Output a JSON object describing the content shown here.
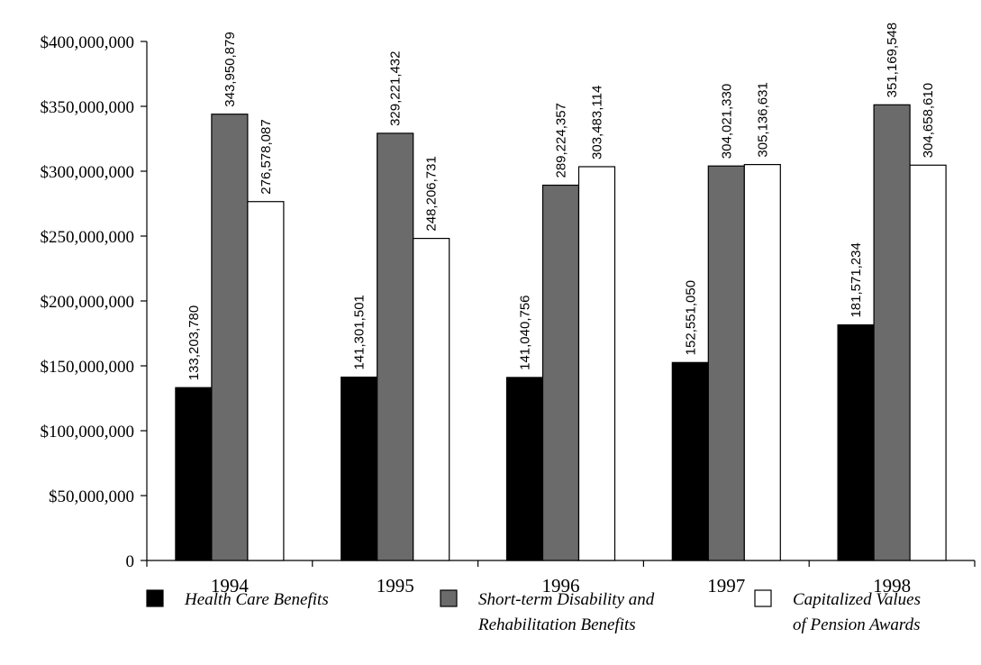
{
  "chart_data": {
    "type": "bar",
    "title": "",
    "xlabel": "",
    "ylabel": "",
    "categories": [
      "1994",
      "1995",
      "1996",
      "1997",
      "1998"
    ],
    "ylim": [
      0,
      400000000
    ],
    "yticks": [
      0,
      50000000,
      100000000,
      150000000,
      200000000,
      250000000,
      300000000,
      350000000,
      400000000
    ],
    "ytick_labels": [
      "0",
      "$50,000,000",
      "$100,000,000",
      "$150,000,000",
      "$200,000,000",
      "$250,000,000",
      "$300,000,000",
      "$350,000,000",
      "$400,000,000"
    ],
    "grid": false,
    "legend_position": "bottom",
    "series": [
      {
        "name_lines": [
          "Health Care Benefits"
        ],
        "color": "#000000",
        "values": [
          133203780,
          141301501,
          141040756,
          152551050,
          181571234
        ],
        "value_labels": [
          "133,203,780",
          "141,301,501",
          "141,040,756",
          "152,551,050",
          "181,571,234"
        ]
      },
      {
        "name_lines": [
          "Short-term Disability and",
          "Rehabilitation Benefits"
        ],
        "color": "#6b6b6b",
        "values": [
          343950879,
          329221432,
          289224357,
          304021330,
          351169548
        ],
        "value_labels": [
          "343,950,879",
          "329,221,432",
          "289,224,357",
          "304,021,330",
          "351,169,548"
        ]
      },
      {
        "name_lines": [
          "Capitalized Values",
          "of Pension Awards"
        ],
        "color": "#ffffff",
        "values": [
          276578087,
          248206731,
          303483114,
          305136631,
          304658610
        ],
        "value_labels": [
          "276,578,087",
          "248,206,731",
          "303,483,114",
          "305,136,631",
          "304,658,610"
        ]
      }
    ]
  }
}
